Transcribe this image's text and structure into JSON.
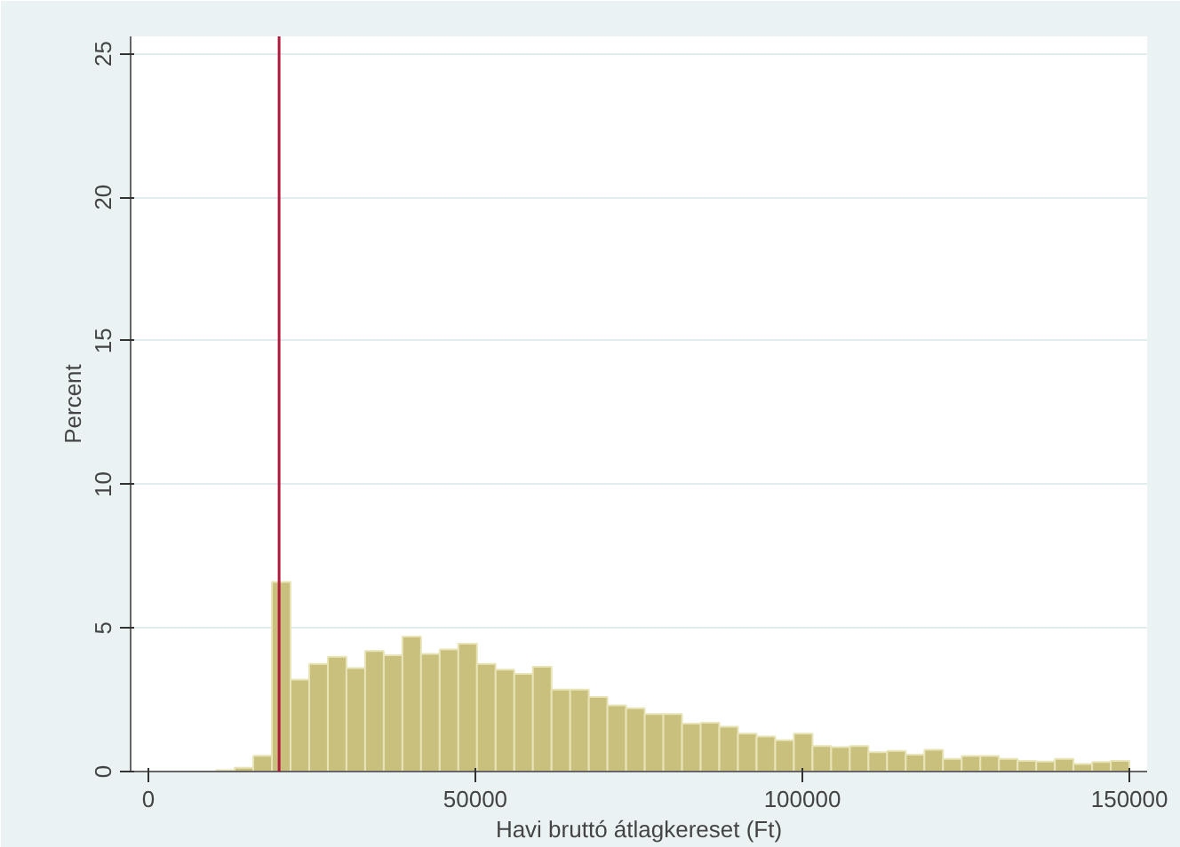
{
  "chart_data": {
    "type": "histogram",
    "xlabel": "Havi bruttó átlagkereset (Ft)",
    "ylabel": "Percent",
    "bins": [
      10350,
      13200,
      16050,
      18900,
      21750,
      24600,
      27450,
      30300,
      33150,
      36000,
      38850,
      41700,
      44550,
      47400,
      50250,
      53100,
      55950,
      58800,
      61650,
      64500,
      67350,
      70200,
      73050,
      75900,
      78750,
      81600,
      84450,
      87300,
      90150,
      93000,
      95850,
      98700,
      101550,
      104400,
      107250,
      110100,
      112950,
      115800,
      118650,
      121500,
      124350,
      127200,
      130050,
      132900,
      135750,
      138600,
      141450,
      144300,
      147150,
      150000
    ],
    "values": [
      0.05,
      0.13,
      0.55,
      6.6,
      3.2,
      3.75,
      4.0,
      3.6,
      4.2,
      4.05,
      4.7,
      4.1,
      4.25,
      4.45,
      3.75,
      3.55,
      3.4,
      3.65,
      2.85,
      2.85,
      2.6,
      2.3,
      2.2,
      2.0,
      2.0,
      1.67,
      1.7,
      1.56,
      1.32,
      1.22,
      1.09,
      1.32,
      0.89,
      0.85,
      0.89,
      0.67,
      0.72,
      0.59,
      0.76,
      0.44,
      0.54,
      0.54,
      0.44,
      0.37,
      0.35,
      0.44,
      0.26,
      0.33,
      0.37
    ],
    "color": "#c8c07c",
    "xlim": [
      -2700,
      152700
    ],
    "xticks": [
      0,
      50000,
      100000,
      150000
    ],
    "ylim": [
      0,
      25.6
    ],
    "yticks": [
      0,
      5,
      10,
      15,
      20,
      25
    ],
    "grid": "y",
    "ref_lines": [
      {
        "axis": "x",
        "value": 20000,
        "color": "#b0183c"
      }
    ]
  }
}
